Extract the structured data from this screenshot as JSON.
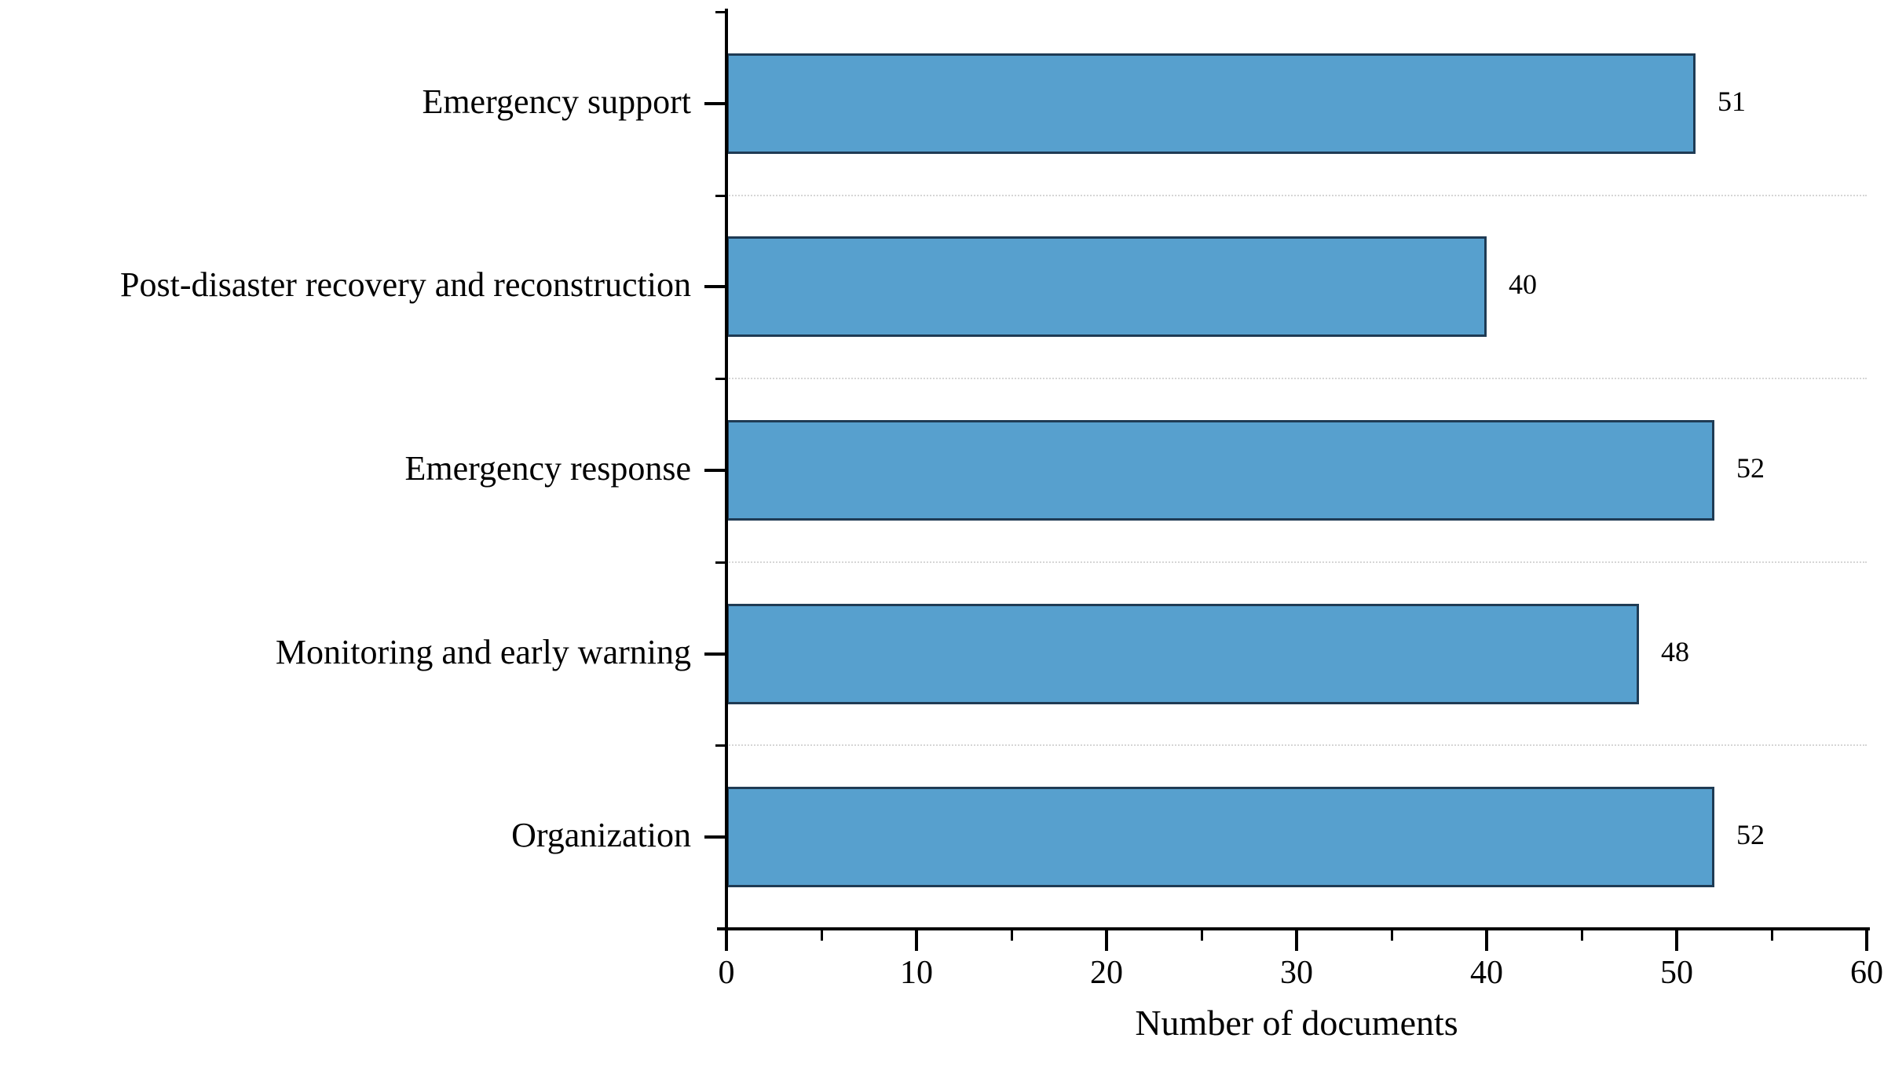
{
  "chart_data": {
    "type": "bar",
    "orientation": "horizontal",
    "title": "",
    "xlabel": "Number of documents",
    "ylabel": "",
    "categories": [
      "Emergency support",
      "Post-disaster recovery and reconstruction",
      "Emergency response",
      "Monitoring and early warning",
      "Organization"
    ],
    "values": [
      51,
      40,
      52,
      48,
      52
    ],
    "xlim": [
      0,
      60
    ],
    "x_major_ticks": [
      0,
      10,
      20,
      30,
      40,
      50,
      60
    ],
    "x_minor_ticks": [
      5,
      15,
      25,
      35,
      45,
      55
    ],
    "legend_position": "none",
    "grid": "dotted horizontal separators between category slots",
    "bar_color": "#57A0CE",
    "bar_border_color": "#1F3B54",
    "gridline_color": "#D6D6D6",
    "axis_color": "#000000",
    "text_color": "#000000",
    "background_color": "#FFFFFF"
  }
}
